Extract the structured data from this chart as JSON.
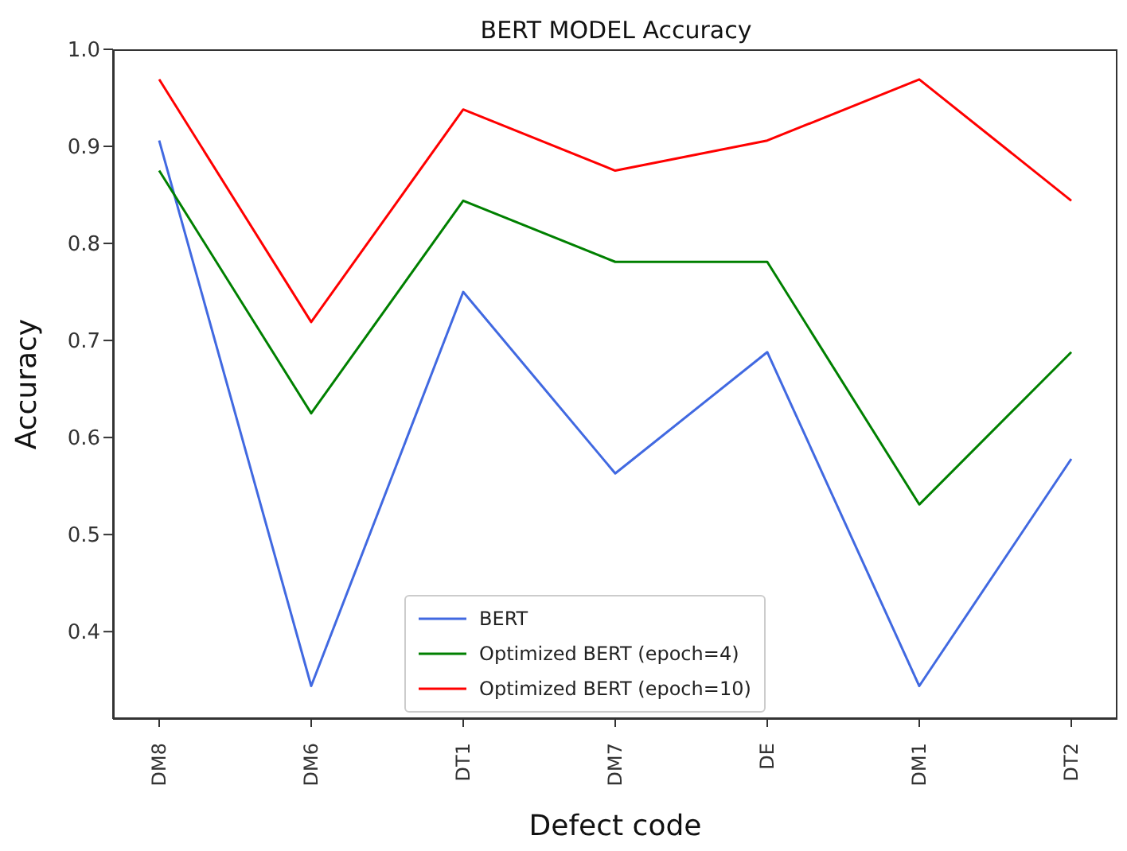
{
  "chart_data": {
    "type": "line",
    "title": "BERT MODEL Accuracy",
    "xlabel": "Defect code",
    "ylabel": "Accuracy",
    "categories": [
      "DM8",
      "DM6",
      "DT1",
      "DM7",
      "DE",
      "DM1",
      "DT2"
    ],
    "series": [
      {
        "name": "BERT",
        "color": "#4169e1",
        "values": [
          0.906,
          0.344,
          0.75,
          0.563,
          0.688,
          0.344,
          0.578
        ]
      },
      {
        "name": "Optimized BERT (epoch=4)",
        "color": "#008000",
        "values": [
          0.875,
          0.625,
          0.844,
          0.781,
          0.781,
          0.531,
          0.688
        ]
      },
      {
        "name": "Optimized BERT (epoch=10)",
        "color": "#ff0000",
        "values": [
          0.969,
          0.719,
          0.938,
          0.875,
          0.906,
          0.969,
          0.844
        ]
      }
    ],
    "ylim": [
      0.31,
      1.0
    ],
    "yticks": [
      0.4,
      0.5,
      0.6,
      0.7,
      0.8,
      0.9,
      {
        "value": 1.0,
        "label": "1.0"
      }
    ],
    "grid": false,
    "legend": "bottom",
    "marker": "none",
    "line_style": "solid"
  }
}
